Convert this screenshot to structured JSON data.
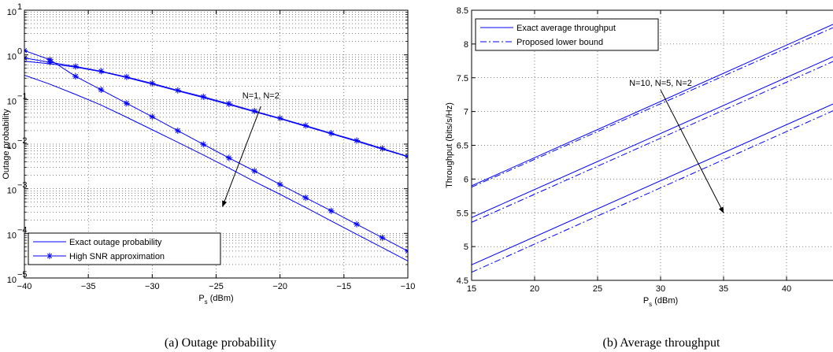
{
  "colors": {
    "series": "#0000ff",
    "axis": "#000000",
    "grid": "#000000"
  },
  "chart_data": [
    {
      "type": "line",
      "caption": "(a) Outage probability",
      "xlabel": "P",
      "xlabel_sub": "s",
      "xlabel_unit": "(dBm)",
      "ylabel": "Outage probability",
      "xlim": [
        -40,
        -10
      ],
      "ylim": [
        1e-05,
        10
      ],
      "yscale": "log",
      "grid": true,
      "x_ticks": [
        -40,
        -35,
        -30,
        -25,
        -20,
        -15,
        -10
      ],
      "x_tick_labels": [
        "−40",
        "−35",
        "−30",
        "−25",
        "−20",
        "−15",
        "−10"
      ],
      "y_ticks": [
        1e-05,
        0.0001,
        0.001,
        0.01,
        0.1,
        1,
        10
      ],
      "y_tick_labels": [
        {
          "base": "10",
          "exp": "−5"
        },
        {
          "base": "10",
          "exp": "−4"
        },
        {
          "base": "10",
          "exp": "−3"
        },
        {
          "base": "10",
          "exp": "−2"
        },
        {
          "base": "10",
          "exp": "−1"
        },
        {
          "base": "10",
          "exp": "0"
        },
        {
          "base": "10",
          "exp": "1"
        }
      ],
      "legend": {
        "position": "bottom-left",
        "entries": [
          "Exact outage probability",
          "High SNR approximation"
        ]
      },
      "annotation": {
        "text": "N=1, N=2",
        "arrow_from": [
          -21.5,
          0.07
        ],
        "arrow_to": [
          -24.5,
          0.0004
        ]
      },
      "series": [
        {
          "name": "Exact outage probability",
          "style": "solid",
          "marker": "none",
          "x": [
            -40,
            -38,
            -36,
            -34,
            -32,
            -30,
            -28,
            -26,
            -24,
            -22,
            -20,
            -18,
            -16,
            -14,
            -12,
            -10
          ],
          "y": [
            0.72,
            0.63,
            0.53,
            0.42,
            0.31,
            0.22,
            0.155,
            0.11,
            0.077,
            0.053,
            0.037,
            0.025,
            0.017,
            0.0115,
            0.0077,
            0.0052
          ]
        },
        {
          "name": "High SNR approximation",
          "style": "solid",
          "marker": "star",
          "x": [
            -40,
            -38,
            -36,
            -34,
            -32,
            -30,
            -28,
            -26,
            -24,
            -22,
            -20,
            -18,
            -16,
            -14,
            -12,
            -10
          ],
          "y": [
            0.85,
            0.68,
            0.55,
            0.43,
            0.32,
            0.23,
            0.16,
            0.115,
            0.08,
            0.055,
            0.038,
            0.026,
            0.0175,
            0.012,
            0.008,
            0.0053
          ]
        },
        {
          "name": "",
          "style": "solid",
          "marker": "none",
          "x": [
            -40,
            -38,
            -36,
            -34,
            -32,
            -30,
            -28,
            -26,
            -24,
            -22,
            -20,
            -18,
            -16,
            -14,
            -12,
            -10
          ],
          "y": [
            0.35,
            0.22,
            0.13,
            0.075,
            0.04,
            0.021,
            0.011,
            0.0057,
            0.0029,
            0.00145,
            0.00075,
            0.00038,
            0.00019,
            9.5e-05,
            4.8e-05,
            2.4e-05
          ]
        },
        {
          "name": "",
          "style": "solid",
          "marker": "star",
          "x": [
            -40,
            -38,
            -36,
            -34,
            -32,
            -30,
            -28,
            -26,
            -24,
            -22,
            -20,
            -18,
            -16,
            -14,
            -12,
            -10
          ],
          "y": [
            1.25,
            0.78,
            0.33,
            0.165,
            0.082,
            0.041,
            0.02,
            0.0099,
            0.0049,
            0.0025,
            0.00125,
            0.00063,
            0.00032,
            0.00016,
            8e-05,
            4e-05
          ]
        }
      ]
    },
    {
      "type": "line",
      "caption": "(b) Average throughput",
      "xlabel": "P",
      "xlabel_sub": "s",
      "xlabel_unit": "(dBm)",
      "ylabel": "Throughput (bits/s/Hz)",
      "xlim": [
        15,
        45
      ],
      "ylim": [
        4.5,
        8.5
      ],
      "yscale": "linear",
      "grid": true,
      "x_ticks": [
        15,
        20,
        25,
        30,
        35,
        40
      ],
      "x_tick_labels": [
        "15",
        "20",
        "25",
        "30",
        "35",
        "40"
      ],
      "y_ticks": [
        4.5,
        5,
        5.5,
        6,
        6.5,
        7,
        7.5,
        8,
        8.5
      ],
      "y_tick_labels": [
        "4.5",
        "5",
        "5.5",
        "6",
        "6.5",
        "7",
        "7.5",
        "8",
        "8.5"
      ],
      "legend": {
        "position": "top-left",
        "entries": [
          "Exact average throughput",
          "Proposed lower bound"
        ]
      },
      "annotation": {
        "text": "N=10, N=5, N=2",
        "arrow_from": [
          30,
          7.32
        ],
        "arrow_to": [
          35,
          5.5
        ]
      },
      "series": [
        {
          "name": "Exact average throughput",
          "style": "solid",
          "x": [
            15,
            45
          ],
          "y": [
            5.9,
            8.4
          ]
        },
        {
          "name": "Proposed lower bound",
          "style": "dashdot",
          "x": [
            15,
            45
          ],
          "y": [
            5.88,
            8.35
          ]
        },
        {
          "name": "",
          "style": "solid",
          "x": [
            15,
            45
          ],
          "y": [
            5.43,
            7.92
          ]
        },
        {
          "name": "",
          "style": "dashdot",
          "x": [
            15,
            45
          ],
          "y": [
            5.36,
            7.85
          ]
        },
        {
          "name": "",
          "style": "solid",
          "x": [
            15,
            45
          ],
          "y": [
            4.73,
            7.22
          ]
        },
        {
          "name": "",
          "style": "dashdot",
          "x": [
            15,
            45
          ],
          "y": [
            4.62,
            7.12
          ]
        }
      ]
    }
  ]
}
